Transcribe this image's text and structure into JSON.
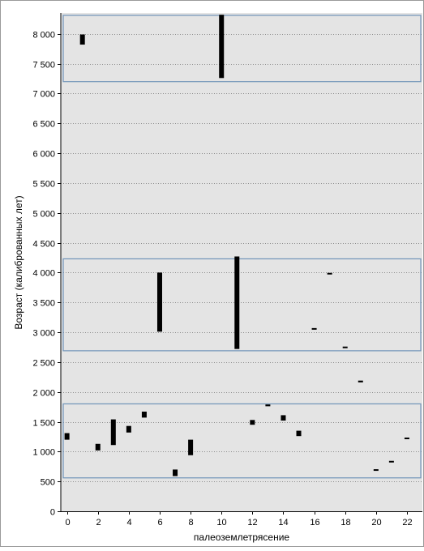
{
  "chart_data": {
    "type": "range-bar",
    "title": "",
    "xlabel": "палеоземлетрясение",
    "ylabel": "Возраст (калиброванных лет)",
    "xlim": [
      -0.4,
      23
    ],
    "ylim": [
      0,
      8350
    ],
    "xticks": [
      0,
      2,
      4,
      6,
      8,
      10,
      12,
      14,
      16,
      18,
      20,
      22
    ],
    "yticks": [
      0,
      500,
      1000,
      1500,
      2000,
      2500,
      3000,
      3500,
      4000,
      4500,
      5000,
      5500,
      6000,
      6500,
      7000,
      7500,
      8000
    ],
    "ytick_labels": [
      "0",
      "500",
      "1 000",
      "1 500",
      "2 000",
      "2 500",
      "3 000",
      "3 500",
      "4 000",
      "4 500",
      "5 000",
      "5 500",
      "6 000",
      "6 500",
      "7 000",
      "7 500",
      "8 000"
    ],
    "grid": "horizontal dotted",
    "colors": {
      "plot_bg": "#e4e4e4",
      "bar": "#000000",
      "cluster_box": "#6f93b8",
      "grid": "#8c8c8c",
      "axis": "#000000"
    },
    "ranges": [
      {
        "x": 0,
        "low": 1200,
        "high": 1310
      },
      {
        "x": 1,
        "low": 7820,
        "high": 7990
      },
      {
        "x": 2,
        "low": 1020,
        "high": 1130
      },
      {
        "x": 3,
        "low": 1110,
        "high": 1540
      },
      {
        "x": 4,
        "low": 1320,
        "high": 1430
      },
      {
        "x": 5,
        "low": 1570,
        "high": 1670
      },
      {
        "x": 6,
        "low": 3010,
        "high": 4000
      },
      {
        "x": 7,
        "low": 590,
        "high": 700
      },
      {
        "x": 8,
        "low": 940,
        "high": 1200
      },
      {
        "x": 10,
        "low": 7260,
        "high": 8320
      },
      {
        "x": 11,
        "low": 2720,
        "high": 4270
      },
      {
        "x": 12,
        "low": 1450,
        "high": 1530
      },
      {
        "x": 13,
        "low": 1760,
        "high": 1790
      },
      {
        "x": 14,
        "low": 1520,
        "high": 1610
      },
      {
        "x": 15,
        "low": 1260,
        "high": 1350
      },
      {
        "x": 16,
        "low": 3050,
        "high": 3070
      },
      {
        "x": 17,
        "low": 3975,
        "high": 3995
      },
      {
        "x": 18,
        "low": 2740,
        "high": 2760
      },
      {
        "x": 19,
        "low": 2160,
        "high": 2190
      },
      {
        "x": 20,
        "low": 690,
        "high": 705
      },
      {
        "x": 21,
        "low": 830,
        "high": 845
      },
      {
        "x": 22,
        "low": 1220,
        "high": 1235
      }
    ],
    "clusters": [
      {
        "low": 7200,
        "high": 8310
      },
      {
        "low": 2690,
        "high": 4230
      },
      {
        "low": 560,
        "high": 1800
      }
    ]
  }
}
